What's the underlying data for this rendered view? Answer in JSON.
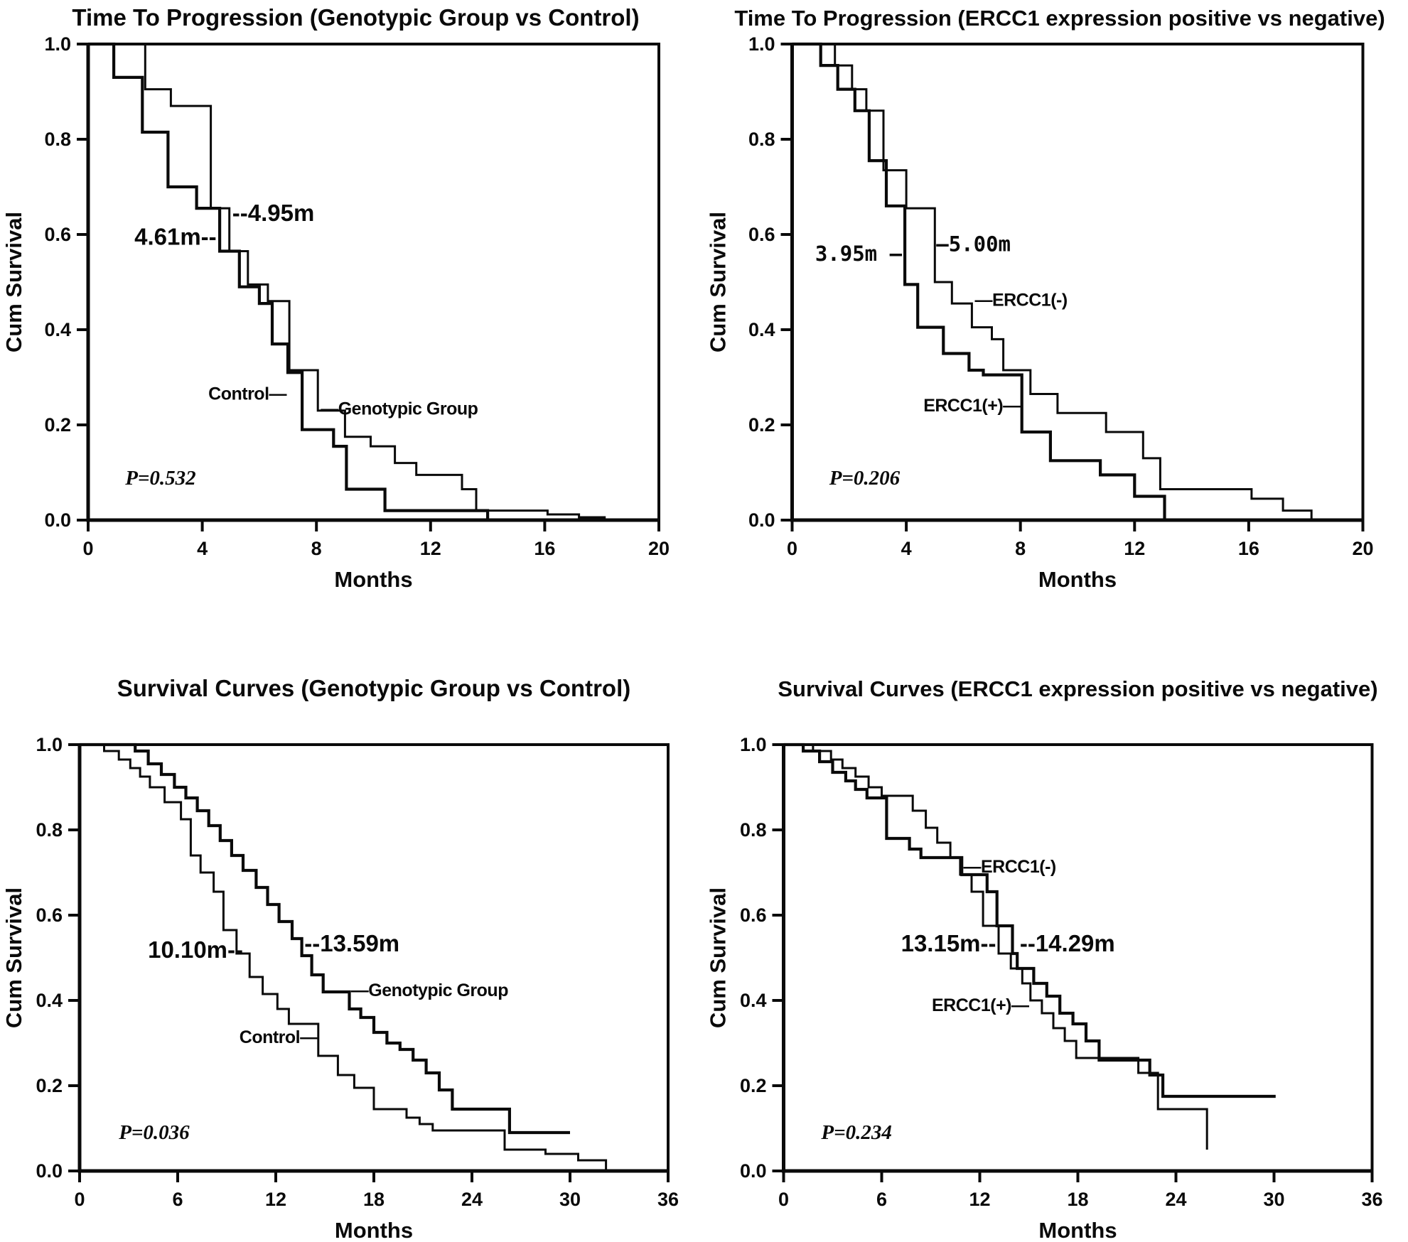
{
  "figure": {
    "background_color": "#ffffff",
    "ink_color": "#0a0a0a",
    "layout": "2x2-grid-of-kaplan-meier-panels"
  },
  "chart_data": [
    {
      "id": "ttp-genotypic-vs-control",
      "type": "line",
      "subtype": "kaplan-meier-step",
      "row": "top",
      "title": "Time To Progression  (Genotypic Group vs Control)",
      "title_size": 33,
      "xlabel": "Months",
      "ylabel": "Cum Survival",
      "xlim": [
        0,
        20
      ],
      "ylim": [
        0.0,
        1.0
      ],
      "x_ticks": [
        "0",
        "4",
        "8",
        "12",
        "16",
        "20"
      ],
      "y_ticks": [
        "1.0",
        "0.8",
        "0.6",
        "0.4",
        "0.2",
        "0.0"
      ],
      "grid": false,
      "frame": true,
      "legend_position": "inline-annotations",
      "p_value": "P=0.532",
      "annotations": [
        {
          "text": "4.61m--",
          "x": 4.5,
          "y": 0.578,
          "anchor": "end",
          "style": "median"
        },
        {
          "text": "--4.95m",
          "x": 5.05,
          "y": 0.628,
          "anchor": "start",
          "style": "median"
        },
        {
          "text": "Control—",
          "x": 6.95,
          "y": 0.253,
          "anchor": "end",
          "style": "group"
        },
        {
          "text": "—Genotypic Group",
          "x": 8.15,
          "y": 0.222,
          "anchor": "start",
          "style": "group"
        },
        {
          "text": "P=0.532",
          "x": 1.3,
          "y": 0.075,
          "anchor": "start",
          "style": "pval"
        }
      ],
      "series": [
        {
          "name": "Control",
          "median_months": 4.61,
          "line_width": 4.2,
          "end_x": null,
          "steps": [
            [
              0.9,
              0.93
            ],
            [
              1.9,
              0.815
            ],
            [
              2.8,
              0.7
            ],
            [
              3.8,
              0.655
            ],
            [
              4.61,
              0.565
            ],
            [
              5.3,
              0.49
            ],
            [
              6.0,
              0.455
            ],
            [
              6.45,
              0.37
            ],
            [
              7.0,
              0.31
            ],
            [
              7.5,
              0.19
            ],
            [
              8.6,
              0.155
            ],
            [
              9.05,
              0.065
            ],
            [
              10.4,
              0.02
            ],
            [
              14.0,
              0.0
            ]
          ]
        },
        {
          "name": "Genotypic Group",
          "median_months": 4.95,
          "line_width": 3.0,
          "end_x": null,
          "steps": [
            [
              2.0,
              0.905
            ],
            [
              2.9,
              0.87
            ],
            [
              4.3,
              0.655
            ],
            [
              4.95,
              0.565
            ],
            [
              5.6,
              0.495
            ],
            [
              6.3,
              0.46
            ],
            [
              7.05,
              0.315
            ],
            [
              8.05,
              0.23
            ],
            [
              9.0,
              0.175
            ],
            [
              9.9,
              0.155
            ],
            [
              10.75,
              0.12
            ],
            [
              11.5,
              0.095
            ],
            [
              13.1,
              0.065
            ],
            [
              13.6,
              0.02
            ],
            [
              16.1,
              0.012
            ],
            [
              17.2,
              0.006
            ],
            [
              18.1,
              0.0
            ]
          ]
        }
      ]
    },
    {
      "id": "ttp-ercc1-pos-vs-neg",
      "type": "line",
      "subtype": "kaplan-meier-step",
      "row": "top",
      "title": "Time To Progression (ERCC1 expression positive vs negative)",
      "title_size": 31,
      "xlabel": "Months",
      "ylabel": "Cum Survival",
      "xlim": [
        0,
        20
      ],
      "ylim": [
        0.0,
        1.0
      ],
      "x_ticks": [
        "0",
        "4",
        "8",
        "12",
        "16",
        "20"
      ],
      "y_ticks": [
        "1.0",
        "0.8",
        "0.6",
        "0.4",
        "0.2",
        "0.0"
      ],
      "grid": false,
      "frame": true,
      "legend_position": "inline-annotations",
      "p_value": "P=0.206",
      "annotations": [
        {
          "text": "3.95m —",
          "x": 3.85,
          "y": 0.545,
          "anchor": "end",
          "style": "median-mono"
        },
        {
          "text": "—5.00m",
          "x": 5.05,
          "y": 0.565,
          "anchor": "start",
          "style": "median-mono"
        },
        {
          "text": "—ERCC1(-)",
          "x": 6.4,
          "y": 0.45,
          "anchor": "start",
          "style": "group"
        },
        {
          "text": "ERCC1(+)—",
          "x": 8.0,
          "y": 0.228,
          "anchor": "end",
          "style": "group"
        },
        {
          "text": "P=0.206",
          "x": 1.3,
          "y": 0.075,
          "anchor": "start",
          "style": "pval"
        }
      ],
      "series": [
        {
          "name": "ERCC1(+)",
          "median_months": 3.95,
          "line_width": 4.2,
          "end_x": null,
          "steps": [
            [
              1.0,
              0.955
            ],
            [
              1.6,
              0.905
            ],
            [
              2.2,
              0.86
            ],
            [
              2.7,
              0.755
            ],
            [
              3.3,
              0.66
            ],
            [
              3.95,
              0.495
            ],
            [
              4.4,
              0.405
            ],
            [
              5.3,
              0.35
            ],
            [
              6.2,
              0.315
            ],
            [
              6.7,
              0.305
            ],
            [
              8.05,
              0.185
            ],
            [
              9.05,
              0.125
            ],
            [
              10.8,
              0.095
            ],
            [
              12.0,
              0.05
            ],
            [
              13.05,
              0.0
            ]
          ]
        },
        {
          "name": "ERCC1(-)",
          "median_months": 5.0,
          "line_width": 3.0,
          "end_x": null,
          "steps": [
            [
              1.5,
              0.955
            ],
            [
              2.1,
              0.905
            ],
            [
              2.6,
              0.86
            ],
            [
              3.2,
              0.735
            ],
            [
              4.0,
              0.655
            ],
            [
              5.0,
              0.5
            ],
            [
              5.6,
              0.455
            ],
            [
              6.3,
              0.405
            ],
            [
              7.0,
              0.38
            ],
            [
              7.4,
              0.315
            ],
            [
              8.35,
              0.265
            ],
            [
              9.3,
              0.225
            ],
            [
              11.0,
              0.185
            ],
            [
              12.3,
              0.13
            ],
            [
              12.9,
              0.065
            ],
            [
              16.1,
              0.045
            ],
            [
              17.2,
              0.02
            ],
            [
              18.2,
              0.0
            ]
          ]
        }
      ]
    },
    {
      "id": "os-genotypic-vs-control",
      "type": "line",
      "subtype": "kaplan-meier-step",
      "row": "bottom",
      "title": "Survival Curves  (Genotypic Group vs Control)",
      "title_size": 33,
      "xlabel": "Months",
      "ylabel": "Cum Survival",
      "xlim": [
        0,
        36
      ],
      "ylim": [
        0.0,
        1.0
      ],
      "x_ticks": [
        "0",
        "6",
        "12",
        "18",
        "24",
        "30",
        "36"
      ],
      "y_ticks": [
        "1.0",
        "0.8",
        "0.6",
        "0.4",
        "0.2",
        "0.0"
      ],
      "grid": false,
      "frame": true,
      "legend_position": "inline-annotations",
      "p_value": "P=0.036",
      "annotations": [
        {
          "text": "10.10m--",
          "x": 10.0,
          "y": 0.5,
          "anchor": "end",
          "style": "median"
        },
        {
          "text": "--13.59m",
          "x": 13.75,
          "y": 0.515,
          "anchor": "start",
          "style": "median"
        },
        {
          "text": "—Genotypic Group",
          "x": 16.6,
          "y": 0.41,
          "anchor": "start",
          "style": "group"
        },
        {
          "text": "Control—",
          "x": 14.55,
          "y": 0.3,
          "anchor": "end",
          "style": "group"
        },
        {
          "text": "P=0.036",
          "x": 2.4,
          "y": 0.075,
          "anchor": "start",
          "style": "pval"
        }
      ],
      "series": [
        {
          "name": "Control",
          "median_months": 10.1,
          "line_width": 3.0,
          "end_x": null,
          "steps": [
            [
              1.5,
              0.985
            ],
            [
              2.4,
              0.965
            ],
            [
              3.1,
              0.945
            ],
            [
              3.7,
              0.925
            ],
            [
              4.3,
              0.9
            ],
            [
              5.2,
              0.865
            ],
            [
              6.2,
              0.825
            ],
            [
              6.8,
              0.74
            ],
            [
              7.4,
              0.7
            ],
            [
              8.2,
              0.655
            ],
            [
              8.8,
              0.565
            ],
            [
              9.6,
              0.51
            ],
            [
              10.4,
              0.455
            ],
            [
              11.2,
              0.415
            ],
            [
              12.1,
              0.38
            ],
            [
              12.8,
              0.345
            ],
            [
              14.6,
              0.27
            ],
            [
              15.8,
              0.225
            ],
            [
              16.8,
              0.195
            ],
            [
              18.0,
              0.145
            ],
            [
              20.0,
              0.125
            ],
            [
              20.8,
              0.11
            ],
            [
              21.6,
              0.095
            ],
            [
              26.0,
              0.05
            ],
            [
              28.5,
              0.04
            ],
            [
              30.5,
              0.025
            ],
            [
              32.2,
              0.0
            ]
          ]
        },
        {
          "name": "Genotypic Group",
          "median_months": 13.59,
          "line_width": 4.2,
          "end_x": 30.0,
          "steps": [
            [
              3.4,
              0.985
            ],
            [
              4.2,
              0.955
            ],
            [
              5.0,
              0.93
            ],
            [
              5.8,
              0.9
            ],
            [
              6.5,
              0.875
            ],
            [
              7.2,
              0.845
            ],
            [
              7.9,
              0.81
            ],
            [
              8.6,
              0.775
            ],
            [
              9.3,
              0.74
            ],
            [
              10.0,
              0.705
            ],
            [
              10.8,
              0.665
            ],
            [
              11.5,
              0.625
            ],
            [
              12.2,
              0.585
            ],
            [
              13.0,
              0.545
            ],
            [
              13.59,
              0.505
            ],
            [
              14.2,
              0.46
            ],
            [
              14.9,
              0.42
            ],
            [
              16.5,
              0.38
            ],
            [
              17.2,
              0.36
            ],
            [
              18.0,
              0.325
            ],
            [
              18.8,
              0.3
            ],
            [
              19.6,
              0.285
            ],
            [
              20.4,
              0.26
            ],
            [
              21.2,
              0.23
            ],
            [
              22.0,
              0.19
            ],
            [
              22.8,
              0.145
            ],
            [
              26.3,
              0.09
            ]
          ]
        }
      ]
    },
    {
      "id": "os-ercc1-pos-vs-neg",
      "type": "line",
      "subtype": "kaplan-meier-step",
      "row": "bottom",
      "title": "Survival Curves  (ERCC1 expression positive vs negative)",
      "title_size": 31,
      "xlabel": "Months",
      "ylabel": "Cum Survival",
      "xlim": [
        0,
        36
      ],
      "ylim": [
        0.0,
        1.0
      ],
      "x_ticks": [
        "0",
        "6",
        "12",
        "18",
        "24",
        "30",
        "36"
      ],
      "y_ticks": [
        "1.0",
        "0.8",
        "0.6",
        "0.4",
        "0.2",
        "0.0"
      ],
      "grid": false,
      "frame": true,
      "legend_position": "inline-annotations",
      "p_value": "P=0.234",
      "annotations": [
        {
          "text": "—ERCC1(-)",
          "x": 11.0,
          "y": 0.7,
          "anchor": "start",
          "style": "group"
        },
        {
          "text": "13.15m--",
          "x": 13.0,
          "y": 0.515,
          "anchor": "end",
          "style": "median"
        },
        {
          "text": "--14.29m",
          "x": 14.45,
          "y": 0.515,
          "anchor": "start",
          "style": "median"
        },
        {
          "text": "ERCC1(+)—",
          "x": 15.0,
          "y": 0.375,
          "anchor": "end",
          "style": "group"
        },
        {
          "text": "P=0.234",
          "x": 2.3,
          "y": 0.075,
          "anchor": "start",
          "style": "pval"
        }
      ],
      "series": [
        {
          "name": "ERCC1(-)",
          "median_months": 14.29,
          "line_width": 4.2,
          "end_x": 30.1,
          "steps": [
            [
              1.2,
              0.985
            ],
            [
              2.2,
              0.96
            ],
            [
              3.0,
              0.935
            ],
            [
              3.8,
              0.915
            ],
            [
              4.4,
              0.895
            ],
            [
              5.1,
              0.875
            ],
            [
              6.3,
              0.78
            ],
            [
              7.7,
              0.755
            ],
            [
              8.4,
              0.735
            ],
            [
              10.9,
              0.695
            ],
            [
              12.45,
              0.655
            ],
            [
              13.05,
              0.575
            ],
            [
              14.0,
              0.51
            ],
            [
              14.29,
              0.475
            ],
            [
              15.3,
              0.44
            ],
            [
              16.1,
              0.41
            ],
            [
              16.9,
              0.37
            ],
            [
              17.7,
              0.345
            ],
            [
              18.5,
              0.305
            ],
            [
              19.3,
              0.26
            ],
            [
              22.4,
              0.225
            ],
            [
              23.2,
              0.175
            ]
          ]
        },
        {
          "name": "ERCC1(+)",
          "median_months": 13.15,
          "line_width": 3.0,
          "end_x": null,
          "steps": [
            [
              1.8,
              0.985
            ],
            [
              2.9,
              0.965
            ],
            [
              3.6,
              0.945
            ],
            [
              4.4,
              0.925
            ],
            [
              5.2,
              0.9
            ],
            [
              6.0,
              0.88
            ],
            [
              7.9,
              0.845
            ],
            [
              8.7,
              0.805
            ],
            [
              9.4,
              0.77
            ],
            [
              10.2,
              0.735
            ],
            [
              10.8,
              0.695
            ],
            [
              11.5,
              0.655
            ],
            [
              12.2,
              0.575
            ],
            [
              13.15,
              0.51
            ],
            [
              13.9,
              0.475
            ],
            [
              14.6,
              0.44
            ],
            [
              15.1,
              0.4
            ],
            [
              15.8,
              0.37
            ],
            [
              16.5,
              0.335
            ],
            [
              17.2,
              0.305
            ],
            [
              17.9,
              0.265
            ],
            [
              21.7,
              0.23
            ],
            [
              22.9,
              0.145
            ],
            [
              25.9,
              0.05
            ]
          ]
        }
      ]
    }
  ]
}
